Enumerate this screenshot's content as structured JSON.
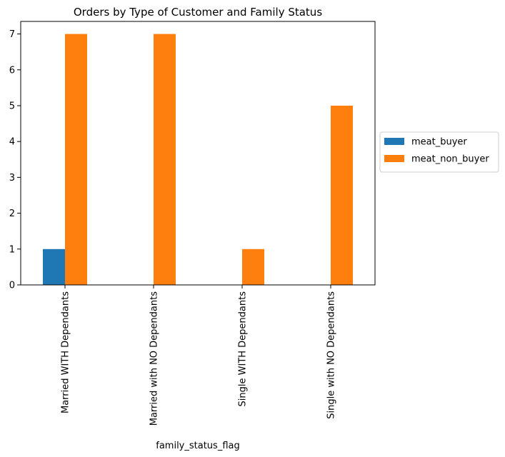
{
  "chart_data": {
    "type": "bar",
    "title": "Orders by Type of Customer and Family Status",
    "xlabel": "family_status_flag",
    "ylabel": "",
    "categories": [
      "Married WITH Dependants",
      "Married with NO Dependants",
      "Single WITH Dependants",
      "Single with NO Dependants"
    ],
    "series": [
      {
        "name": "meat_buyer",
        "values": [
          1,
          0,
          0,
          0
        ],
        "color": "#1f77b4"
      },
      {
        "name": "meat_non_buyer",
        "values": [
          7,
          7,
          1,
          5
        ],
        "color": "#ff7f0e"
      }
    ],
    "ylim": [
      0,
      7.35
    ],
    "yticks": [
      0,
      1,
      2,
      3,
      4,
      5,
      6,
      7
    ],
    "grid": false,
    "legend_position": "center-right-outside"
  }
}
